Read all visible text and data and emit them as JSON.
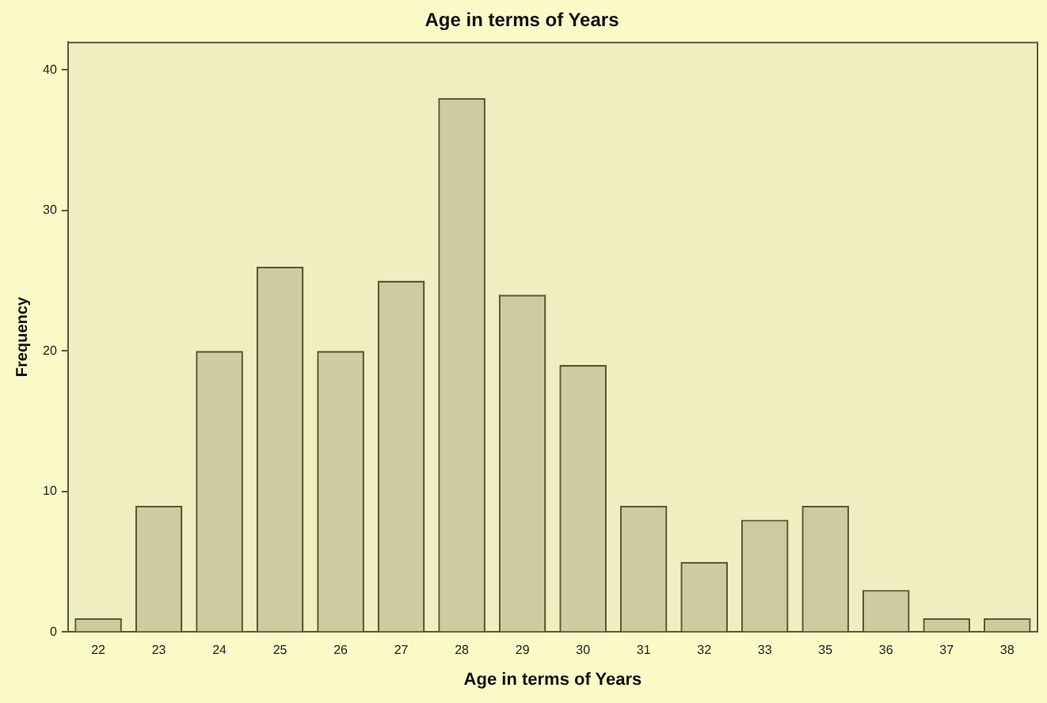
{
  "chart_data": {
    "type": "bar",
    "title": "Age in terms of Years",
    "xlabel": "Age in terms of Years",
    "ylabel": "Frequency",
    "categories": [
      "22",
      "23",
      "24",
      "25",
      "26",
      "27",
      "28",
      "29",
      "30",
      "31",
      "32",
      "33",
      "35",
      "36",
      "37",
      "38"
    ],
    "values": [
      1,
      9,
      20,
      26,
      20,
      25,
      38,
      24,
      19,
      9,
      5,
      8,
      9,
      3,
      1,
      1
    ],
    "color": "#cccca0",
    "ylim": [
      0,
      42
    ],
    "yticks": [
      0,
      10,
      20,
      30,
      40
    ],
    "grid": false,
    "legend": false
  }
}
